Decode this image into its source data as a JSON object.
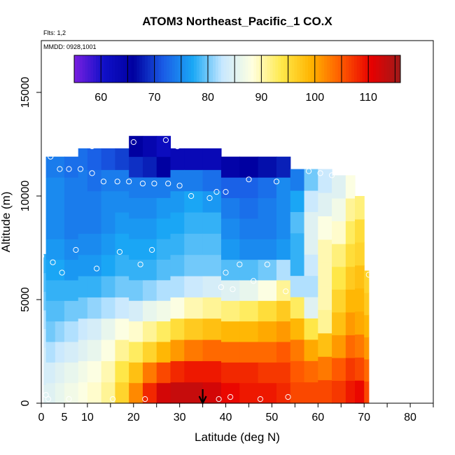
{
  "chart_data": {
    "type": "heatmap",
    "title": "ATOM3 Northeast_Pacific_1 CO.X",
    "flights_label": "Flts: 1,2",
    "dates_label": "MMDD: 0928,1001",
    "xlabel": "Latitude (deg N)",
    "ylabel": "Altitude (m)",
    "xlim": [
      0,
      85
    ],
    "ylim": [
      0,
      17500
    ],
    "x_ticks": [
      0,
      5,
      10,
      20,
      30,
      40,
      50,
      60,
      70,
      80
    ],
    "y_ticks": [
      0,
      5000,
      10000,
      15000
    ],
    "colorbar": {
      "range": [
        55,
        116
      ],
      "ticks": [
        60,
        70,
        80,
        90,
        100,
        110
      ],
      "colors": [
        "#7a1fe0",
        "#1010c8",
        "#0000a0",
        "#1a5ce6",
        "#1aa8f5",
        "#c8e8ff",
        "#ffffe0",
        "#ffe94a",
        "#ffb300",
        "#ff5a00",
        "#e80000",
        "#9e1a1a"
      ]
    },
    "grid": false,
    "arrow_marker_lat": 35,
    "profile_columns": [
      {
        "lat_range": [
          0.5,
          3
        ],
        "alt_top": 7200,
        "values": [
          85,
          84,
          84,
          83,
          82,
          80,
          79,
          78
        ]
      },
      {
        "lat_range": [
          1,
          3
        ],
        "alt_top": 11900,
        "values": [
          85,
          84,
          82,
          80,
          79,
          78,
          77,
          76,
          75,
          75,
          75,
          74
        ]
      },
      {
        "lat_range": [
          3,
          5
        ],
        "alt_top": 11900,
        "values": [
          86,
          85,
          83,
          81,
          79,
          78,
          77,
          76,
          75,
          75,
          75,
          74
        ]
      },
      {
        "lat_range": [
          5,
          8
        ],
        "alt_top": 11900,
        "values": [
          87,
          86,
          84,
          82,
          80,
          78,
          76,
          75,
          74,
          74,
          74,
          73
        ]
      },
      {
        "lat_range": [
          8,
          10
        ],
        "alt_top": 12300,
        "values": [
          88,
          87,
          85,
          83,
          80,
          78,
          76,
          75,
          74,
          74,
          74,
          73
        ]
      },
      {
        "lat_range": [
          10,
          13
        ],
        "alt_top": 12300,
        "values": [
          89,
          88,
          86,
          84,
          81,
          78,
          76,
          75,
          74,
          74,
          73,
          72
        ]
      },
      {
        "lat_range": [
          13,
          16
        ],
        "alt_top": 12300,
        "values": [
          91,
          90,
          88,
          86,
          82,
          79,
          77,
          76,
          75,
          75,
          74,
          71
        ]
      },
      {
        "lat_range": [
          16,
          19
        ],
        "alt_top": 12300,
        "values": [
          96,
          94,
          91,
          88,
          83,
          80,
          78,
          77,
          76,
          75,
          74,
          70
        ]
      },
      {
        "lat_range": [
          19,
          22
        ],
        "alt_top": 12900,
        "values": [
          102,
          98,
          93,
          89,
          84,
          80,
          78,
          77,
          76,
          75,
          74,
          69,
          66
        ]
      },
      {
        "lat_range": [
          22,
          25
        ],
        "alt_top": 12900,
        "values": [
          108,
          103,
          96,
          91,
          86,
          81,
          78,
          77,
          76,
          75,
          74,
          68,
          64
        ]
      },
      {
        "lat_range": [
          25,
          28
        ],
        "alt_top": 12900,
        "values": [
          112,
          106,
          99,
          93,
          87,
          82,
          79,
          78,
          77,
          76,
          74,
          66,
          62
        ]
      },
      {
        "lat_range": [
          28,
          31
        ],
        "alt_top": 12300,
        "values": [
          113,
          108,
          101,
          95,
          88,
          82,
          79,
          78,
          77,
          76,
          74,
          63
        ]
      },
      {
        "lat_range": [
          31,
          35
        ],
        "alt_top": 12300,
        "values": [
          113,
          109,
          103,
          97,
          90,
          83,
          80,
          79,
          78,
          77,
          74,
          63
        ]
      },
      {
        "lat_range": [
          35,
          39
        ],
        "alt_top": 12300,
        "values": [
          112,
          109,
          104,
          98,
          91,
          84,
          80,
          79,
          78,
          76,
          73,
          63
        ]
      },
      {
        "lat_range": [
          39,
          43
        ],
        "alt_top": 11900,
        "values": [
          110,
          108,
          104,
          99,
          92,
          85,
          79,
          76,
          75,
          74,
          72,
          65
        ]
      },
      {
        "lat_range": [
          43,
          47
        ],
        "alt_top": 11900,
        "values": [
          109,
          108,
          104,
          99,
          93,
          86,
          79,
          75,
          74,
          73,
          72,
          66
        ]
      },
      {
        "lat_range": [
          47,
          51
        ],
        "alt_top": 11900,
        "values": [
          109,
          107,
          104,
          100,
          95,
          88,
          80,
          75,
          74,
          74,
          73,
          67
        ]
      },
      {
        "lat_range": [
          51,
          54
        ],
        "alt_top": 11900,
        "values": [
          108,
          107,
          105,
          101,
          97,
          91,
          82,
          76,
          75,
          75,
          75,
          68
        ]
      },
      {
        "lat_range": [
          54,
          57
        ],
        "alt_top": 11300,
        "values": [
          106,
          105,
          103,
          99,
          93,
          82,
          78,
          78,
          79,
          77,
          74
        ]
      },
      {
        "lat_range": [
          57,
          60
        ],
        "alt_top": 11300,
        "values": [
          106,
          104,
          100,
          94,
          85,
          82,
          83,
          85,
          85,
          83,
          80
        ]
      },
      {
        "lat_range": [
          60,
          63
        ],
        "alt_top": 11300,
        "values": [
          106,
          103,
          98,
          91,
          90,
          90,
          90,
          88,
          85,
          83
        ]
      },
      {
        "lat_range": [
          63,
          66
        ],
        "alt_top": 11000,
        "values": [
          107,
          105,
          101,
          98,
          96,
          94,
          92,
          89,
          87,
          85
        ]
      },
      {
        "lat_range": [
          66,
          68
        ],
        "alt_top": 11000,
        "values": [
          109,
          107,
          104,
          101,
          99,
          97,
          95,
          93,
          91,
          88
        ]
      },
      {
        "lat_range": [
          68,
          70
        ],
        "alt_top": 10000,
        "values": [
          110,
          106,
          103,
          100,
          99,
          98,
          96,
          95,
          92
        ]
      },
      {
        "lat_range": [
          70,
          71
        ],
        "alt_top": 6400,
        "values": [
          106,
          104,
          101,
          99,
          97,
          96
        ]
      }
    ],
    "sample_points": [
      [
        0,
        7100
      ],
      [
        2.5,
        6800
      ],
      [
        4.5,
        6300
      ],
      [
        7.5,
        7400
      ],
      [
        12,
        6500
      ],
      [
        17,
        7300
      ],
      [
        21.5,
        6700
      ],
      [
        24,
        7400
      ],
      [
        40,
        6300
      ],
      [
        39,
        5600
      ],
      [
        41.5,
        5500
      ],
      [
        43,
        6700
      ],
      [
        46,
        5900
      ],
      [
        49,
        6700
      ],
      [
        53,
        5400
      ],
      [
        71,
        6200
      ],
      [
        2,
        11900
      ],
      [
        4,
        11300
      ],
      [
        6,
        11300
      ],
      [
        8.5,
        11300
      ],
      [
        11,
        11100
      ],
      [
        11,
        12400
      ],
      [
        20,
        12600
      ],
      [
        27,
        12700
      ],
      [
        29.5,
        12400
      ],
      [
        13.5,
        10700
      ],
      [
        16.5,
        10700
      ],
      [
        19,
        10700
      ],
      [
        22,
        10600
      ],
      [
        24.5,
        10600
      ],
      [
        27.5,
        10600
      ],
      [
        30,
        10500
      ],
      [
        32.5,
        10000
      ],
      [
        36.5,
        9900
      ],
      [
        38,
        10200
      ],
      [
        40,
        10200
      ],
      [
        45,
        10800
      ],
      [
        51,
        10700
      ],
      [
        58,
        11200
      ],
      [
        60.5,
        11100
      ],
      [
        63,
        11000
      ],
      [
        1,
        400
      ],
      [
        1.5,
        200
      ],
      [
        6,
        200
      ],
      [
        15.5,
        200
      ],
      [
        22.5,
        200
      ],
      [
        38.5,
        200
      ],
      [
        41,
        300
      ],
      [
        47.5,
        200
      ],
      [
        53.5,
        300
      ]
    ]
  }
}
